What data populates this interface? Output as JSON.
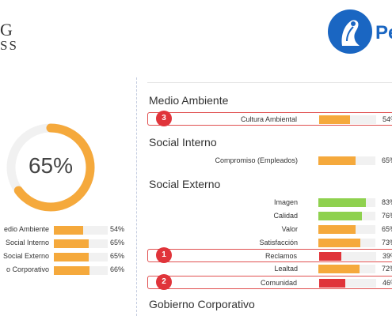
{
  "header": {
    "logo_left_line1": "G",
    "logo_left_line2": "SS",
    "logo_right_text": "Pe"
  },
  "summary": {
    "donut_value": "65%",
    "donut_fraction": 0.65,
    "items": [
      {
        "label": "edio Ambiente",
        "value": 54,
        "pct": "54%"
      },
      {
        "label": "Social Interno",
        "value": 65,
        "pct": "65%"
      },
      {
        "label": "Social Externo",
        "value": 65,
        "pct": "65%"
      },
      {
        "label": "o Corporativo",
        "value": 66,
        "pct": "66%"
      }
    ]
  },
  "sections": [
    {
      "title": "Medio Ambiente",
      "rows": [
        {
          "label": "Cultura Ambiental",
          "value": 54,
          "pct": "54%",
          "color": "#f5a93c",
          "badge": "3"
        }
      ]
    },
    {
      "title": "Social Interno",
      "rows": [
        {
          "label": "Compromiso (Empleados)",
          "value": 65,
          "pct": "65%",
          "color": "#f5a93c"
        }
      ]
    },
    {
      "title": "Social Externo",
      "rows": [
        {
          "label": "Imagen",
          "value": 83,
          "pct": "83%",
          "color": "#8fd14f"
        },
        {
          "label": "Calidad",
          "value": 76,
          "pct": "76%",
          "color": "#8fd14f"
        },
        {
          "label": "Valor",
          "value": 65,
          "pct": "65%",
          "color": "#f5a93c"
        },
        {
          "label": "Satisfacción",
          "value": 73,
          "pct": "73%",
          "color": "#f5a93c"
        },
        {
          "label": "Reclamos",
          "value": 39,
          "pct": "39%",
          "color": "#e0343a",
          "badge": "1"
        },
        {
          "label": "Lealtad",
          "value": 72,
          "pct": "72%",
          "color": "#f5a93c"
        },
        {
          "label": "Comunidad",
          "value": 46,
          "pct": "46%",
          "color": "#e0343a",
          "badge": "2"
        }
      ]
    },
    {
      "title": "Gobierno Corporativo",
      "rows": []
    }
  ],
  "colors": {
    "accent_orange": "#f5a93c",
    "accent_green": "#8fd14f",
    "accent_red": "#e0343a",
    "highlight_border": "#e05050",
    "brand_blue": "#1a66c2"
  }
}
